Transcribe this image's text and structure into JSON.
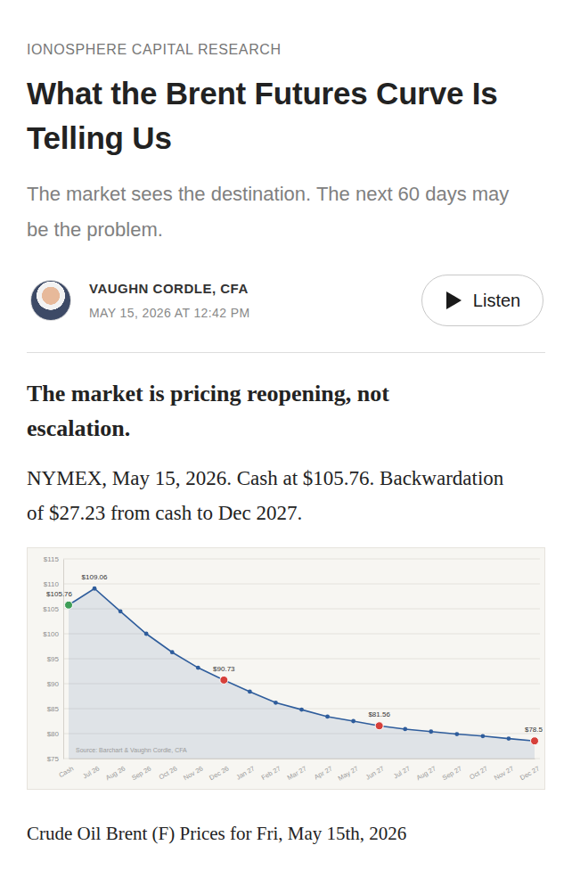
{
  "publication": "IONOSPHERE CAPITAL RESEARCH",
  "title": "What the Brent Futures Curve Is Telling Us",
  "subtitle": "The market sees the destination. The next 60 days may be the problem.",
  "author": {
    "name": "VAUGHN CORDLE, CFA",
    "date": "MAY 15, 2026 AT 12:42 PM"
  },
  "button": "Listen",
  "heading": "The market is pricing reopening, not escalation.",
  "paragraph": "NYMEX, May 15, 2026. Cash at $105.76. Backwardation of $27.23 from cash to Dec 2027.",
  "chart_data": {
    "type": "area",
    "categories": [
      "Cash",
      "Jul 26",
      "Aug 26",
      "Sep 26",
      "Oct 26",
      "Nov 26",
      "Dec 26",
      "Jan 27",
      "Feb 27",
      "Mar 27",
      "Apr 27",
      "May 27",
      "Jun 27",
      "Jul 27",
      "Aug 27",
      "Sep 27",
      "Oct 27",
      "Nov 27",
      "Dec 27"
    ],
    "values": [
      105.76,
      109.06,
      104.5,
      100.0,
      96.3,
      93.2,
      90.73,
      88.4,
      86.2,
      84.8,
      83.4,
      82.5,
      81.56,
      80.9,
      80.4,
      79.9,
      79.5,
      79.0,
      78.53
    ],
    "value_labels": [
      "$105.76",
      "$109.06",
      null,
      null,
      null,
      null,
      "$90.73",
      null,
      null,
      null,
      null,
      null,
      "$81.56",
      null,
      null,
      null,
      null,
      null,
      "$78.5"
    ],
    "color": "#2f5d9c",
    "colors": [
      "#3e9e57",
      "#2f5d9c",
      "#2f5d9c",
      "#2f5d9c",
      "#2f5d9c",
      "#2f5d9c",
      "#d6403a",
      "#2f5d9c",
      "#2f5d9c",
      "#2f5d9c",
      "#2f5d9c",
      "#2f5d9c",
      "#d6403a",
      "#2f5d9c",
      "#2f5d9c",
      "#2f5d9c",
      "#2f5d9c",
      "#2f5d9c",
      "#d6403a"
    ],
    "marker": "circle",
    "line_style": "solid",
    "data_labels": true,
    "grid": true,
    "ylim": [
      75,
      115
    ],
    "yticks": [
      {
        "value": 75,
        "label": "$75"
      },
      {
        "value": 80,
        "label": "$80"
      },
      {
        "value": 85,
        "label": "$85"
      },
      {
        "value": 90,
        "label": "$90"
      },
      {
        "value": 95,
        "label": "$95"
      },
      {
        "value": 100,
        "label": "$100"
      },
      {
        "value": 105,
        "label": "$105"
      },
      {
        "value": 110,
        "label": "$110"
      },
      {
        "value": 115,
        "label": "$115"
      }
    ],
    "annotations": [
      "Source: Barchart & Vaughn Cordle, CFA"
    ]
  },
  "caption": "Crude Oil Brent (F) Prices for Fri, May 15th, 2026"
}
